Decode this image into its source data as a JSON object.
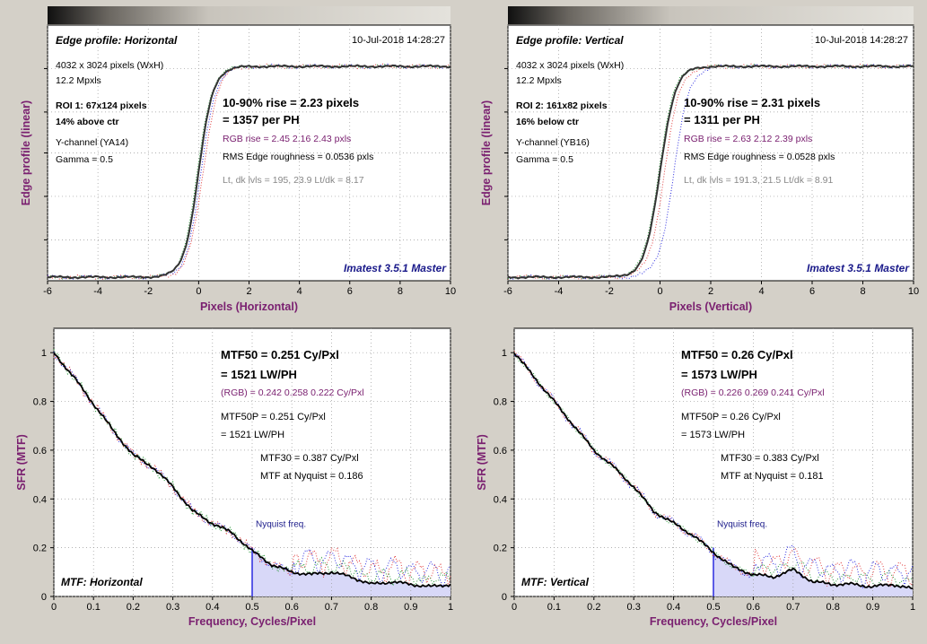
{
  "colors": {
    "panel_bg": "#d4d0c8",
    "plot_bg": "#ffffff",
    "main_line": "#000000",
    "purple": "#7a2070",
    "navy": "#1a1a8a",
    "red": "#e03a3a",
    "green": "#2a9a3a",
    "blue": "#2a2ae0",
    "nyquist_fill": "#d8d8f8"
  },
  "charts": [
    {
      "id": "edge-h",
      "type": "line",
      "title": "Edge profile: Horizontal",
      "date": "10-Jul-2018 14:28:27",
      "xlabel": "Pixels (Horizontal)",
      "ylabel": "Edge profile (linear)",
      "xlim": [
        -6,
        10
      ],
      "xticks": [
        -6,
        -4,
        -2,
        0,
        2,
        4,
        6,
        8,
        10
      ],
      "yticks": [
        0,
        0.2,
        0.4,
        0.6,
        0.8,
        1
      ],
      "info_left": [
        "4032 x 3024 pixels (WxH)",
        "12.2 Mpxls",
        "ROI 1:  67x124 pixels",
        "14% above ctr",
        "Y-channel  (YA14)",
        "Gamma = 0.5"
      ],
      "rise_line1": "10-90% rise = 2.23 pixels",
      "rise_line2": "= 1357 per PH",
      "rgb_rise": "RGB rise = 2.45  2.16  2.43 pxls",
      "roughness": "RMS Edge roughness = 0.0536 pxls",
      "levels": "Lt, dk lvls = 195, 23.9   Lt/dk = 8.17",
      "watermark": "Imatest 3.5.1 Master"
    },
    {
      "id": "edge-v",
      "type": "line",
      "title": "Edge profile: Vertical",
      "date": "10-Jul-2018 14:28:27",
      "xlabel": "Pixels (Vertical)",
      "ylabel": "Edge profile (linear)",
      "xlim": [
        -6,
        10
      ],
      "xticks": [
        -6,
        -4,
        -2,
        0,
        2,
        4,
        6,
        8,
        10
      ],
      "yticks": [
        0,
        0.2,
        0.4,
        0.6,
        0.8,
        1
      ],
      "info_left": [
        "4032 x 3024 pixels (WxH)",
        "12.2 Mpxls",
        "ROI 2:  161x82 pixels",
        "16% below ctr",
        "Y-channel  (YB16)",
        "Gamma = 0.5"
      ],
      "rise_line1": "10-90% rise = 2.31 pixels",
      "rise_line2": "= 1311 per PH",
      "rgb_rise": "RGB rise = 2.63  2.12  2.39 pxls",
      "roughness": "RMS Edge roughness = 0.0528 pxls",
      "levels": "Lt, dk lvls = 191.3, 21.5   Lt/dk = 8.91",
      "watermark": "Imatest 3.5.1 Master"
    },
    {
      "id": "mtf-h",
      "type": "line",
      "title": "MTF: Horizontal",
      "xlabel": "Frequency, Cycles/Pixel",
      "ylabel": "SFR (MTF)",
      "xlim": [
        0,
        1
      ],
      "ylim": [
        0,
        1.1
      ],
      "xticks": [
        "0",
        "0.1",
        "0.2",
        "0.3",
        "0.4",
        "0.5",
        "0.6",
        "0.7",
        "0.8",
        "0.9",
        "1"
      ],
      "yticks": [
        "0",
        "0.2",
        "0.4",
        "0.6",
        "0.8",
        "1"
      ],
      "mtf50_line1": "MTF50 = 0.251 Cy/Pxl",
      "mtf50_line2": "= 1521 LW/PH",
      "rgb": "(RGB) = 0.242  0.258  0.222 Cy/Pxl",
      "mtf50p_line1": "MTF50P = 0.251 Cy/Pxl",
      "mtf50p_line2": "= 1521 LW/PH",
      "mtf30": "MTF30 = 0.387 Cy/Pxl",
      "nyq_val": "MTF at Nyquist = 0.186",
      "nyquist_label": "Nyquist freq.",
      "nyquist_x": 0.5,
      "series": [
        {
          "x": [
            0,
            0.05,
            0.1,
            0.15,
            0.2,
            0.25,
            0.3,
            0.35,
            0.4,
            0.45,
            0.5,
            0.55,
            0.6,
            0.65,
            0.7,
            0.75,
            0.8,
            0.85,
            0.9,
            0.95,
            1
          ],
          "y": [
            1,
            0.9,
            0.79,
            0.68,
            0.58,
            0.53,
            0.45,
            0.35,
            0.3,
            0.26,
            0.186,
            0.13,
            0.1,
            0.09,
            0.1,
            0.08,
            0.05,
            0.06,
            0.05,
            0.04,
            0.05
          ]
        }
      ]
    },
    {
      "id": "mtf-v",
      "type": "line",
      "title": "MTF: Vertical",
      "xlabel": "Frequency, Cycles/Pixel",
      "ylabel": "SFR (MTF)",
      "xlim": [
        0,
        1
      ],
      "ylim": [
        0,
        1.1
      ],
      "xticks": [
        "0",
        "0.1",
        "0.2",
        "0.3",
        "0.4",
        "0.5",
        "0.6",
        "0.7",
        "0.8",
        "0.9",
        "1"
      ],
      "yticks": [
        "0",
        "0.2",
        "0.4",
        "0.6",
        "0.8",
        "1"
      ],
      "mtf50_line1": "MTF50 = 0.26 Cy/Pxl",
      "mtf50_line2": "= 1573 LW/PH",
      "rgb": "(RGB) = 0.226  0.269  0.241 Cy/Pxl",
      "mtf50p_line1": "MTF50P = 0.26 Cy/Pxl",
      "mtf50p_line2": "= 1573 LW/PH",
      "mtf30": "MTF30 = 0.383 Cy/Pxl",
      "nyq_val": "MTF at Nyquist = 0.181",
      "nyquist_label": "Nyquist freq.",
      "nyquist_x": 0.5,
      "series": [
        {
          "x": [
            0,
            0.05,
            0.1,
            0.15,
            0.2,
            0.25,
            0.3,
            0.35,
            0.4,
            0.45,
            0.5,
            0.55,
            0.6,
            0.65,
            0.7,
            0.75,
            0.8,
            0.85,
            0.9,
            0.95,
            1
          ],
          "y": [
            1,
            0.9,
            0.8,
            0.7,
            0.6,
            0.53,
            0.45,
            0.35,
            0.3,
            0.25,
            0.181,
            0.12,
            0.09,
            0.08,
            0.11,
            0.06,
            0.05,
            0.05,
            0.04,
            0.05,
            0.03
          ]
        }
      ]
    }
  ]
}
